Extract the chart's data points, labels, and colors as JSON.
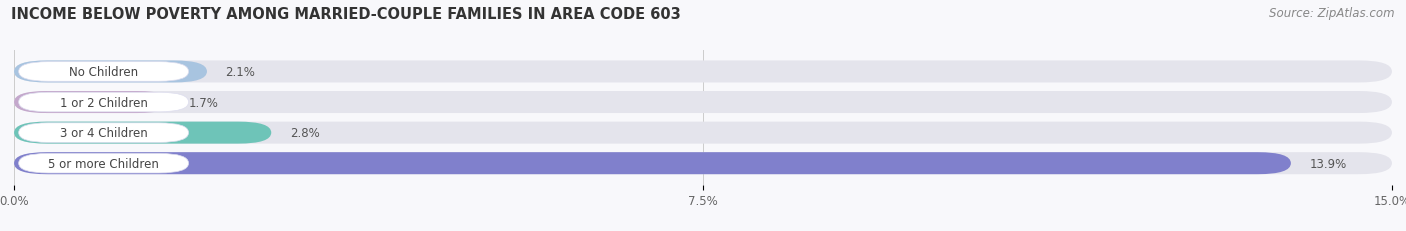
{
  "title": "INCOME BELOW POVERTY AMONG MARRIED-COUPLE FAMILIES IN AREA CODE 603",
  "source": "Source: ZipAtlas.com",
  "categories": [
    "No Children",
    "1 or 2 Children",
    "3 or 4 Children",
    "5 or more Children"
  ],
  "values": [
    2.1,
    1.7,
    2.8,
    13.9
  ],
  "bar_colors": [
    "#a8c4e0",
    "#c4a8cc",
    "#6ec4b8",
    "#8080cc"
  ],
  "bar_bg_color": "#e4e4ec",
  "background_color": "#f8f8fb",
  "xlim": [
    0,
    15.0
  ],
  "xticks": [
    0.0,
    7.5,
    15.0
  ],
  "xtick_labels": [
    "0.0%",
    "7.5%",
    "15.0%"
  ],
  "title_fontsize": 10.5,
  "source_fontsize": 8.5,
  "bar_label_fontsize": 8.5,
  "category_fontsize": 8.5,
  "tick_fontsize": 8.5,
  "bar_height": 0.72,
  "bar_gap": 1.0
}
